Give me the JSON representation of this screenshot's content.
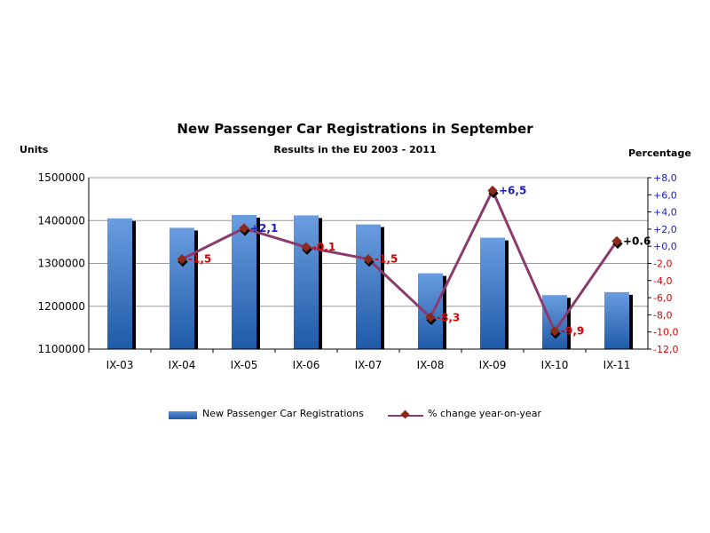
{
  "chart_data": {
    "type": "bar",
    "title": "New Passenger Car Registrations in September",
    "subtitle": "Results in the EU 2003 - 2011",
    "ylabel_left": "Units",
    "ylabel_right": "Percentage",
    "categories": [
      "IX-03",
      "IX-04",
      "IX-05",
      "IX-06",
      "IX-07",
      "IX-08",
      "IX-09",
      "IX-10",
      "IX-11"
    ],
    "ylim_left": [
      1100000,
      1500000
    ],
    "yticks_left": [
      "1500000",
      "1400000",
      "1300000",
      "1200000",
      "1100000"
    ],
    "ylim_right": [
      -12,
      8
    ],
    "yticks_right": [
      "+8,0",
      "+6,0",
      "+4,0",
      "+2,0",
      "+0,0",
      "-2,0",
      "-4,0",
      "-6,0",
      "-8,0",
      "-10,0",
      "-12,0"
    ],
    "series": [
      {
        "name": "New Passenger Car Registrations",
        "type": "bar",
        "color": "#2e6bc0",
        "values": [
          1405000,
          1383000,
          1413000,
          1412000,
          1391000,
          1277000,
          1360000,
          1226000,
          1233000
        ]
      },
      {
        "name": "% change year-on-year",
        "type": "line",
        "axis": "right",
        "color": "#8b3a6d",
        "marker_color": "#8b2a1a",
        "values": [
          null,
          -1.5,
          2.1,
          -0.1,
          -1.5,
          -8.3,
          6.5,
          -9.9,
          0.6
        ],
        "labels": [
          "",
          "-1,5",
          "+2,1",
          "-0,1",
          "-1,5",
          "-8,3",
          "+6,5",
          "-9,9",
          "+0.6"
        ],
        "label_colors": [
          "",
          "#e00000",
          "#1a1acc",
          "#e00000",
          "#e00000",
          "#e00000",
          "#1a1acc",
          "#e00000",
          "#000000"
        ]
      }
    ],
    "grid": true,
    "legend_position": "bottom"
  }
}
